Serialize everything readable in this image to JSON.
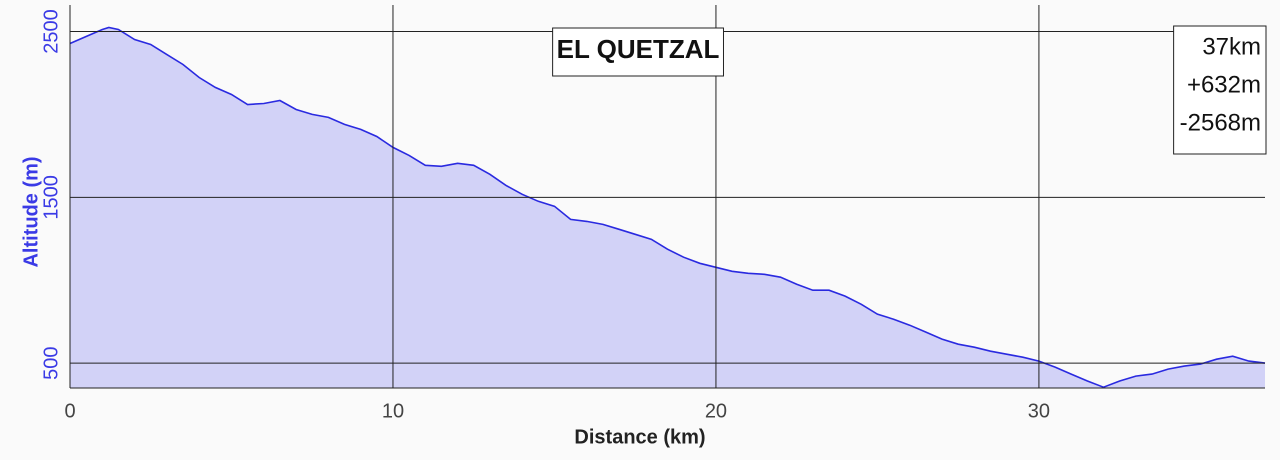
{
  "chart_data": {
    "type": "area",
    "title": "EL QUETZAL",
    "stats": [
      "37km",
      "+632m",
      "-2568m"
    ],
    "x_label": "Distance (km)",
    "y_label": "Altitude (m)",
    "x": [
      0,
      0.5,
      1,
      1.2,
      1.5,
      2,
      2.5,
      3,
      3.5,
      4,
      4.5,
      5,
      5.5,
      6,
      6.5,
      7,
      7.5,
      8,
      8.5,
      9,
      9.5,
      10,
      10.5,
      11,
      11.5,
      12,
      12.5,
      13,
      13.5,
      14,
      14.5,
      15,
      15.5,
      16,
      16.5,
      17,
      17.5,
      18,
      18.5,
      19,
      19.5,
      20,
      20.5,
      21,
      21.5,
      22,
      22.5,
      23,
      23.5,
      24,
      24.5,
      25,
      25.5,
      26,
      26.5,
      27,
      27.5,
      28,
      28.5,
      29,
      29.5,
      30,
      30.5,
      31,
      31.5,
      32,
      32.5,
      33,
      33.5,
      34,
      34.5,
      35,
      35.5,
      36,
      36.5,
      37
    ],
    "series": [
      {
        "name": "Altitude",
        "color": "#2a2ae0",
        "fill": "#d2d2f7",
        "values": [
          2428,
          2470,
          2512,
          2524,
          2512,
          2452,
          2422,
          2361,
          2301,
          2223,
          2163,
          2120,
          2060,
          2066,
          2084,
          2030,
          2000,
          1982,
          1940,
          1910,
          1867,
          1801,
          1753,
          1693,
          1687,
          1705,
          1693,
          1639,
          1572,
          1518,
          1476,
          1446,
          1367,
          1355,
          1337,
          1307,
          1277,
          1247,
          1187,
          1139,
          1102,
          1078,
          1054,
          1042,
          1036,
          1018,
          976,
          940,
          940,
          904,
          855,
          795,
          765,
          729,
          687,
          645,
          614,
          596,
          572,
          554,
          536,
          512,
          476,
          434,
          392,
          355,
          392,
          422,
          434,
          464,
          482,
          494,
          524,
          542,
          512,
          500
        ]
      }
    ],
    "xlim": [
      0,
      37
    ],
    "xticks": [
      0,
      10,
      20,
      30
    ],
    "ylim": [
      350,
      2660
    ],
    "yticks": [
      500,
      1500,
      2500
    ],
    "grid": true
  }
}
